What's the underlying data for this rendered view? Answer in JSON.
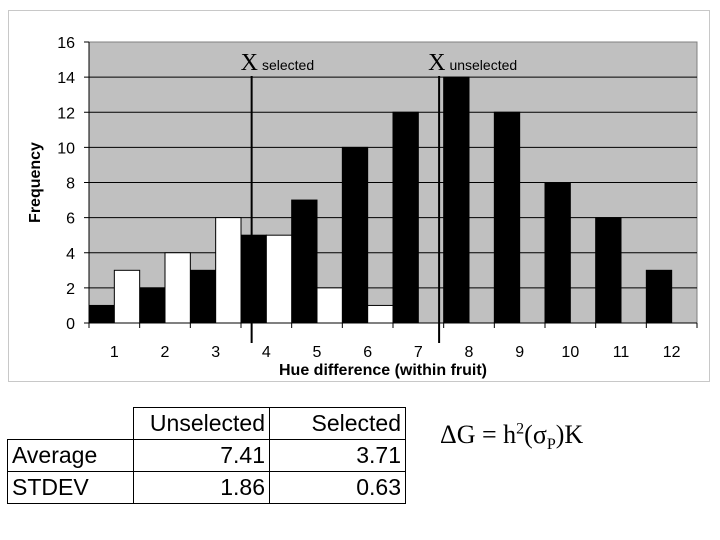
{
  "chart_data": {
    "type": "bar",
    "xlabel": "Hue difference (within fruit)",
    "ylabel": "Frequency",
    "categories": [
      "1",
      "2",
      "3",
      "4",
      "5",
      "6",
      "7",
      "8",
      "9",
      "10",
      "11",
      "12"
    ],
    "ylim": [
      0,
      16
    ],
    "yticks": [
      "0",
      "2",
      "4",
      "6",
      "8",
      "10",
      "12",
      "14",
      "16"
    ],
    "grid": true,
    "series": [
      {
        "color": "#000000",
        "values": [
          1,
          2,
          3,
          5,
          7,
          10,
          12,
          14,
          12,
          8,
          6,
          3
        ]
      },
      {
        "color": "#ffffff",
        "values": [
          3,
          4,
          6,
          5,
          2,
          1,
          0,
          0,
          0,
          0,
          0,
          0
        ]
      }
    ],
    "annotations": [
      {
        "label": "X",
        "sub": "selected",
        "x": 3.71
      },
      {
        "label": "X",
        "sub": "unselected",
        "x": 7.41
      }
    ],
    "plot_background": "#c0c0c0"
  },
  "table": {
    "header": [
      "",
      "Unselected",
      "Selected"
    ],
    "rows": [
      [
        "Average",
        "7.41",
        "3.71"
      ],
      [
        "STDEV",
        "1.86",
        "0.63"
      ]
    ]
  },
  "formula": {
    "delta": "ΔG = h",
    "power": "2",
    "open": "(σ",
    "subscript": "P",
    "close": ")K"
  }
}
